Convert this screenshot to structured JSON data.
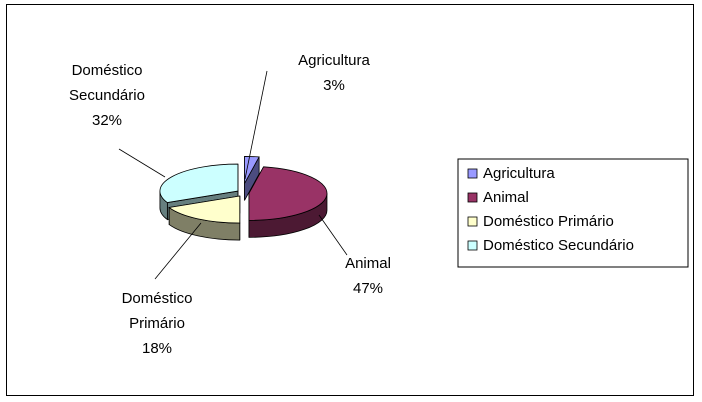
{
  "chart_data": {
    "type": "pie",
    "style": "3d-exploded",
    "categories": [
      "Agricultura",
      "Animal",
      "Doméstico Primário",
      "Doméstico Secundário"
    ],
    "values": [
      3,
      47,
      18,
      32
    ],
    "value_labels": [
      "3%",
      "47%",
      "18%",
      "32%"
    ],
    "slice_labels": [
      [
        "Agricultura",
        "3%"
      ],
      [
        "Animal",
        "47%"
      ],
      [
        "Doméstico",
        "Primário",
        "18%"
      ],
      [
        "Doméstico",
        "Secundário",
        "32%"
      ]
    ],
    "colors": [
      "#9999FF",
      "#993366",
      "#FFFFCC",
      "#CCFFFF"
    ],
    "side_colors": [
      "#4C4C7F",
      "#4C1933",
      "#7F7F66",
      "#667F7F"
    ],
    "legend_position": "right",
    "title": ""
  }
}
